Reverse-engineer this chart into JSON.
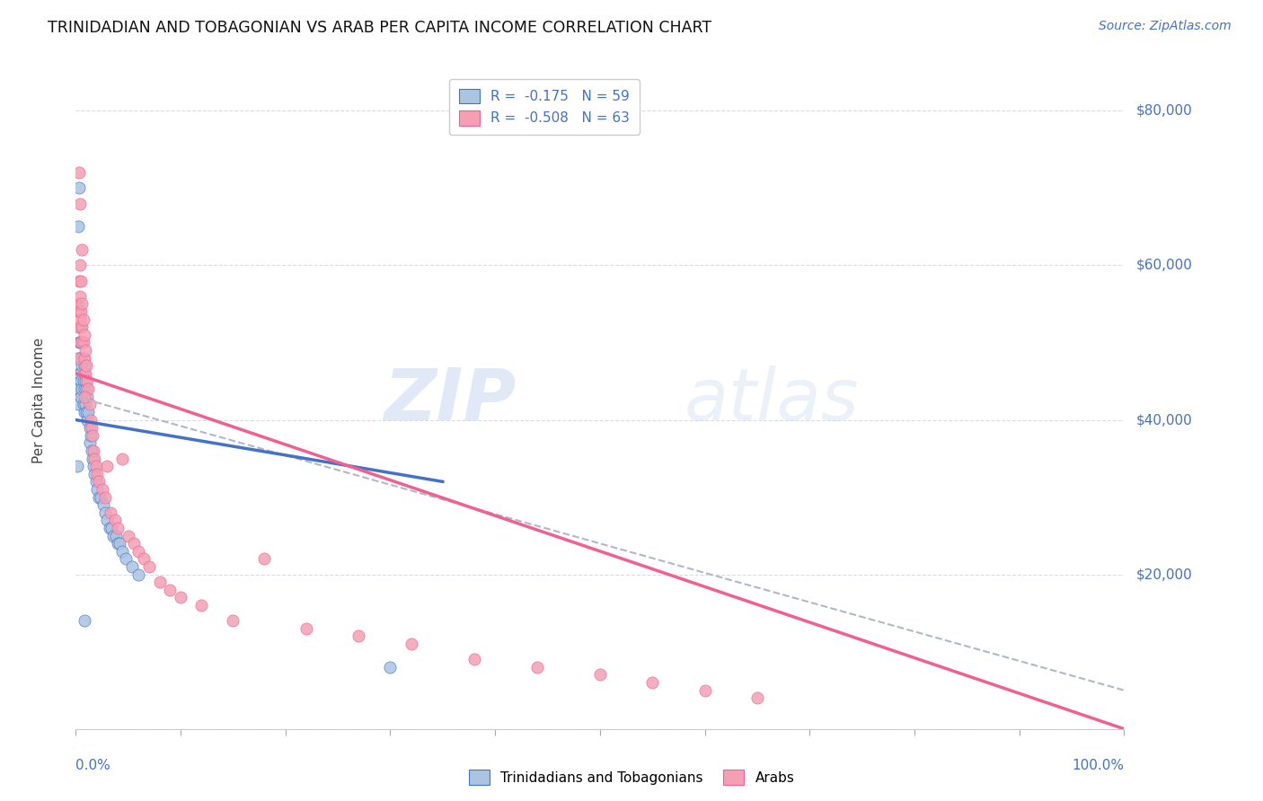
{
  "title": "TRINIDADIAN AND TOBAGONIAN VS ARAB PER CAPITA INCOME CORRELATION CHART",
  "source": "Source: ZipAtlas.com",
  "ylabel": "Per Capita Income",
  "legend1_r": "-0.175",
  "legend1_n": "59",
  "legend2_r": "-0.508",
  "legend2_n": "63",
  "color_blue": "#aac4e2",
  "color_pink": "#f4a0b4",
  "color_blue_line": "#4472c4",
  "color_pink_line": "#f06090",
  "color_axis_label": "#4472c4",
  "watermark_zip": "ZIP",
  "watermark_atlas": "atlas",
  "xlim": [
    0.0,
    1.0
  ],
  "ylim": [
    0,
    85000
  ],
  "yticks": [
    0,
    20000,
    40000,
    60000,
    80000
  ],
  "ytick_labels": [
    "",
    "$20,000",
    "$40,000",
    "$60,000",
    "$80,000"
  ],
  "background_color": "#ffffff",
  "grid_color": "#d8dce0",
  "blue_scatter_x": [
    0.001,
    0.002,
    0.002,
    0.002,
    0.003,
    0.003,
    0.003,
    0.003,
    0.004,
    0.004,
    0.004,
    0.005,
    0.005,
    0.005,
    0.005,
    0.006,
    0.006,
    0.006,
    0.007,
    0.007,
    0.007,
    0.008,
    0.008,
    0.008,
    0.009,
    0.009,
    0.01,
    0.01,
    0.011,
    0.011,
    0.012,
    0.013,
    0.013,
    0.014,
    0.015,
    0.016,
    0.017,
    0.018,
    0.019,
    0.02,
    0.022,
    0.024,
    0.026,
    0.028,
    0.03,
    0.032,
    0.034,
    0.036,
    0.038,
    0.04,
    0.042,
    0.044,
    0.048,
    0.054,
    0.06,
    0.002,
    0.003,
    0.008,
    0.3
  ],
  "blue_scatter_y": [
    34000,
    48000,
    44000,
    42000,
    52000,
    50000,
    46000,
    44000,
    50000,
    48000,
    46000,
    52000,
    48000,
    45000,
    43000,
    50000,
    47000,
    44000,
    48000,
    45000,
    42000,
    47000,
    44000,
    41000,
    45000,
    42000,
    44000,
    41000,
    43000,
    40000,
    41000,
    39000,
    37000,
    38000,
    36000,
    35000,
    34000,
    33000,
    32000,
    31000,
    30000,
    30000,
    29000,
    28000,
    27000,
    26000,
    26000,
    25000,
    25000,
    24000,
    24000,
    23000,
    22000,
    21000,
    20000,
    65000,
    70000,
    14000,
    8000
  ],
  "pink_scatter_x": [
    0.001,
    0.002,
    0.002,
    0.003,
    0.003,
    0.004,
    0.004,
    0.004,
    0.005,
    0.005,
    0.005,
    0.006,
    0.006,
    0.007,
    0.007,
    0.008,
    0.008,
    0.008,
    0.009,
    0.009,
    0.01,
    0.011,
    0.012,
    0.013,
    0.014,
    0.015,
    0.016,
    0.017,
    0.018,
    0.019,
    0.02,
    0.022,
    0.025,
    0.028,
    0.03,
    0.033,
    0.037,
    0.04,
    0.044,
    0.05,
    0.055,
    0.06,
    0.065,
    0.07,
    0.08,
    0.09,
    0.1,
    0.12,
    0.15,
    0.18,
    0.22,
    0.27,
    0.32,
    0.38,
    0.44,
    0.5,
    0.55,
    0.6,
    0.65,
    0.003,
    0.004,
    0.006,
    0.008
  ],
  "pink_scatter_y": [
    48000,
    55000,
    52000,
    58000,
    54000,
    60000,
    56000,
    53000,
    58000,
    54000,
    50000,
    55000,
    52000,
    53000,
    50000,
    51000,
    48000,
    46000,
    49000,
    46000,
    47000,
    45000,
    44000,
    42000,
    40000,
    39000,
    38000,
    36000,
    35000,
    34000,
    33000,
    32000,
    31000,
    30000,
    34000,
    28000,
    27000,
    26000,
    35000,
    25000,
    24000,
    23000,
    22000,
    21000,
    19000,
    18000,
    17000,
    16000,
    14000,
    22000,
    13000,
    12000,
    11000,
    9000,
    8000,
    7000,
    6000,
    5000,
    4000,
    72000,
    68000,
    62000,
    43000
  ],
  "blue_trend": [
    0.0,
    0.35,
    40000,
    32000
  ],
  "pink_trend": [
    0.0,
    1.0,
    46000,
    0
  ],
  "dashed_trend": [
    0.0,
    1.0,
    43000,
    5000
  ]
}
